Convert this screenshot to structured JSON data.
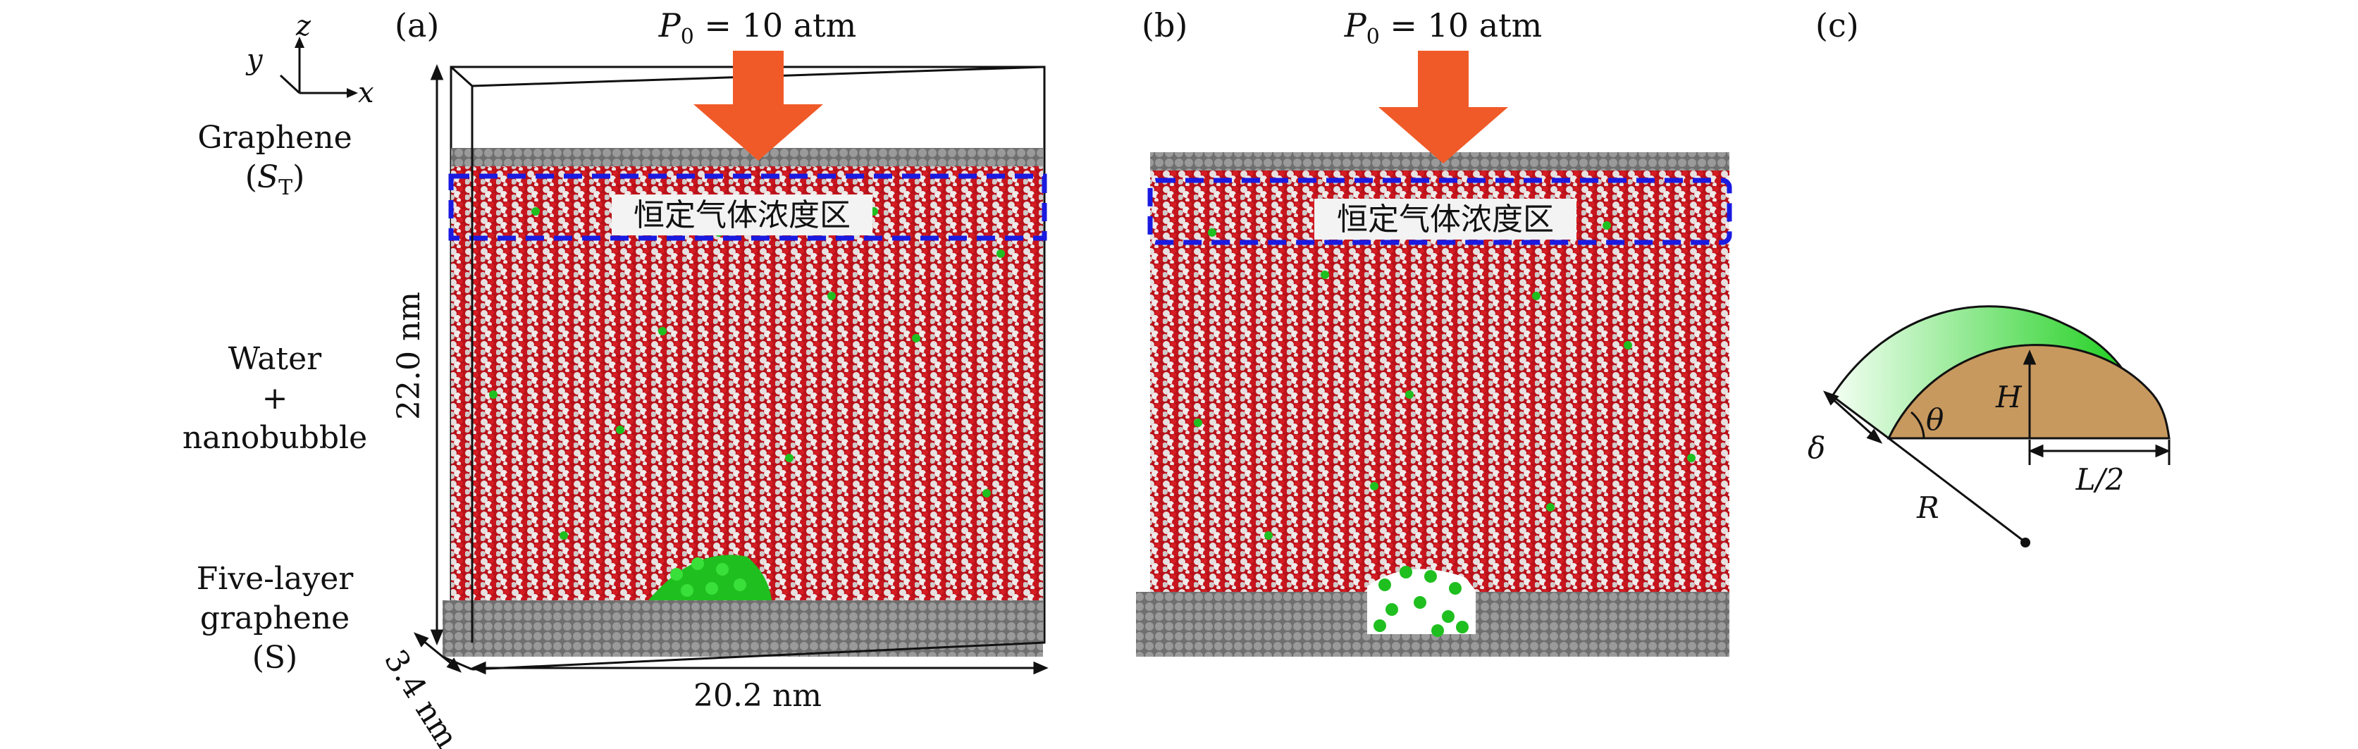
{
  "panels": {
    "a": {
      "tag": "(a)",
      "pressure": {
        "symbol": "P",
        "subscript": "0",
        "expr": " = 10 atm"
      },
      "region_label": "恒定气体浓度区",
      "dim_height": "22.0 nm",
      "dim_width": "20.2 nm",
      "dim_depth": "3.4 nm"
    },
    "b": {
      "tag": "(b)",
      "pressure": {
        "symbol": "P",
        "subscript": "0",
        "expr": " = 10 atm"
      },
      "region_label": "恒定气体浓度区"
    },
    "c": {
      "tag": "(c)",
      "symbols": {
        "H": "H",
        "theta": "θ",
        "delta": "δ",
        "R": "R",
        "half_L": "L/2"
      }
    }
  },
  "axes": {
    "z": "z",
    "y": "y",
    "x": "x"
  },
  "side_labels": {
    "graphene_top": "Graphene",
    "graphene_top_sym": "S",
    "graphene_top_sub": "T",
    "water_1": "Water",
    "water_plus": "+",
    "water_2": "nanobubble",
    "five_1": "Five-layer",
    "five_2": "graphene",
    "five_3": "(S)"
  },
  "colors": {
    "arrow": "#f05a28",
    "water_o": "#c0141c",
    "water_h": "#e8e2e2",
    "gas": "#1fbf1f",
    "graphene": "#808080",
    "dashed_box": "#1a1ae0",
    "bubble_cap": "#22dd22",
    "drop_fill": "#c8995e"
  }
}
